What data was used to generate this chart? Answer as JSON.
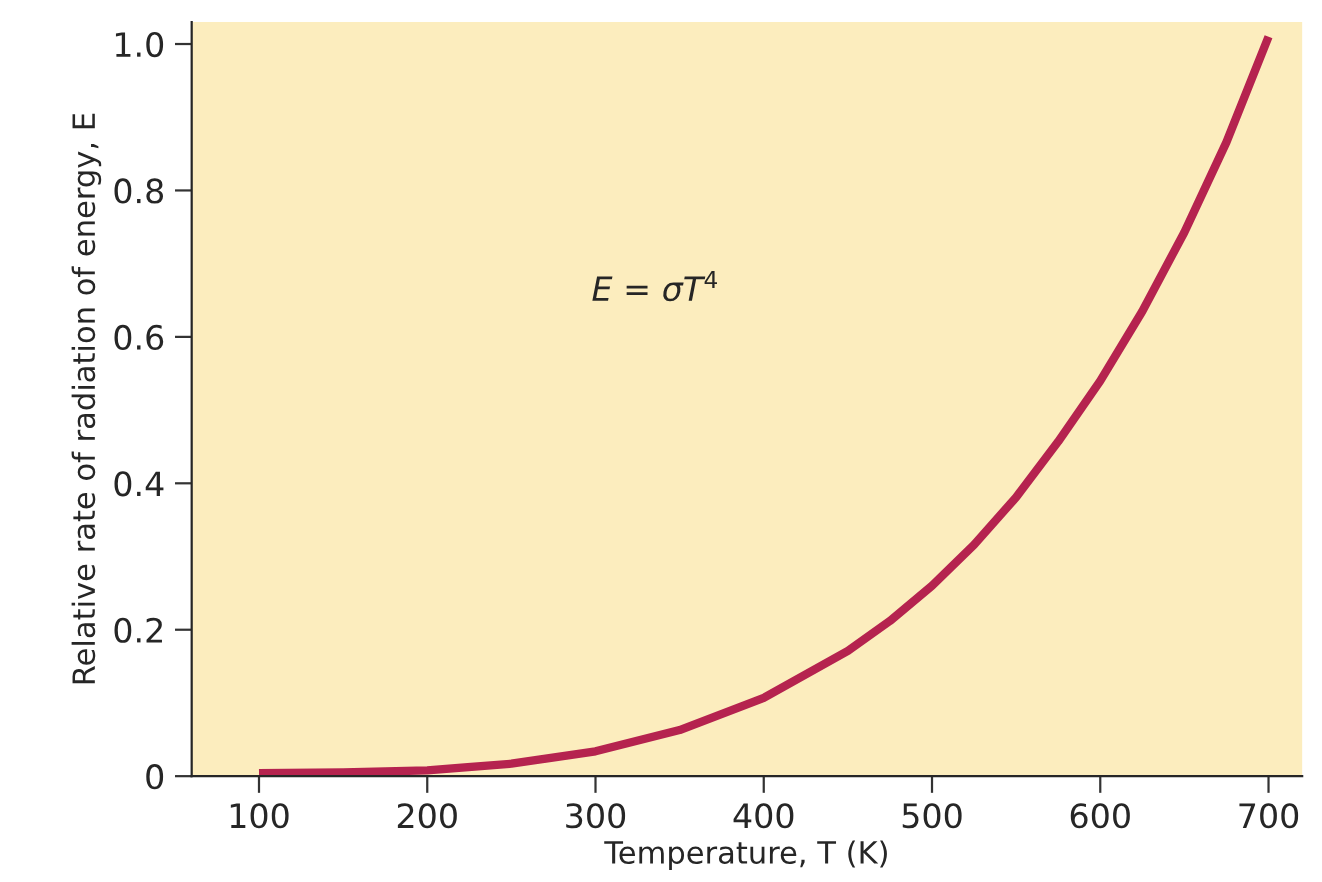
{
  "chart_data": {
    "type": "line",
    "xlabel": "Temperature, T (K)",
    "ylabel": "Relative rate of radiation of energy, E",
    "annotations": [
      "E = σT$^{4}$"
    ],
    "x": [
      100,
      150,
      200,
      250,
      300,
      350,
      400,
      450,
      475,
      500,
      525,
      550,
      575,
      600,
      625,
      650,
      675,
      700
    ],
    "series": [
      {
        "color": "#b5234f",
        "values": [
          0.004,
          0.005,
          0.008,
          0.017,
          0.034,
          0.063,
          0.107,
          0.171,
          0.212,
          0.26,
          0.316,
          0.381,
          0.457,
          0.54,
          0.635,
          0.743,
          0.866,
          1.01
        ]
      }
    ],
    "xlim": [
      60,
      720
    ],
    "ylim": [
      0,
      1.03
    ],
    "xticks": [
      100,
      200,
      300,
      400,
      500,
      600,
      700
    ],
    "yticks": [
      0,
      0.2,
      0.4,
      0.6,
      0.8,
      {
        "value": 1.0,
        "label": "1.0"
      }
    ],
    "grid": false,
    "marker": "none",
    "line_style": "solid"
  }
}
